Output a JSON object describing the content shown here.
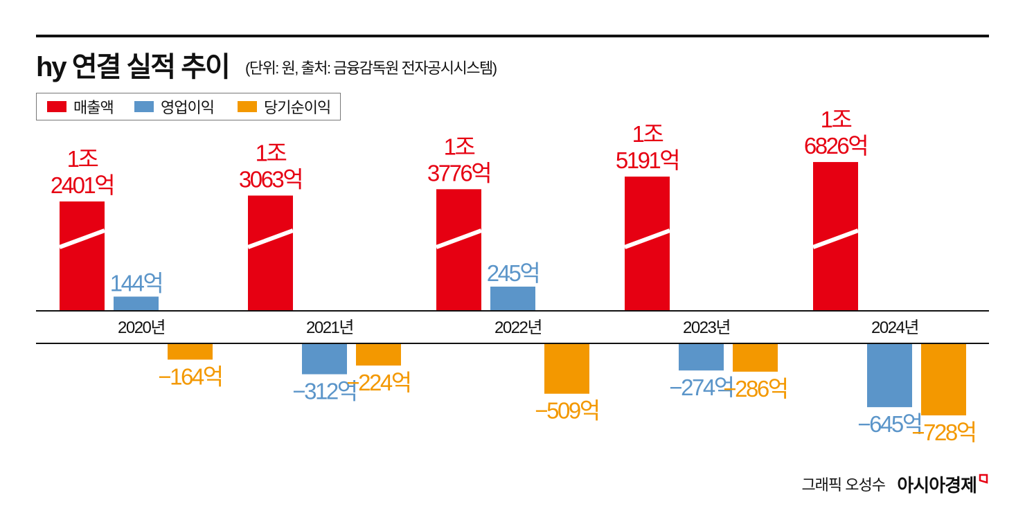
{
  "chart_data": {
    "type": "bar",
    "title": "hy 연결 실적 추이",
    "subtitle": "(단위: 원, 출처: 금융감독원 전자공시시스템)",
    "categories": [
      "2020년",
      "2021년",
      "2022년",
      "2023년",
      "2024년"
    ],
    "legend_position": "top-left",
    "axis_break_on_series": "매출액",
    "unit": "억",
    "series": [
      {
        "name": "매출액",
        "color": "#e60012",
        "values": [
          12401,
          13063,
          13776,
          15191,
          16826
        ],
        "labels": [
          [
            "1조",
            "2401억"
          ],
          [
            "1조",
            "3063억"
          ],
          [
            "1조",
            "3776억"
          ],
          [
            "1조",
            "5191억"
          ],
          [
            "1조",
            "6826억"
          ]
        ]
      },
      {
        "name": "영업이익",
        "color": "#5b95c9",
        "values": [
          144,
          -312,
          245,
          -274,
          -645
        ],
        "labels": [
          "144억",
          "−312억",
          "245억",
          "−274억",
          "−645억"
        ]
      },
      {
        "name": "당기순이익",
        "color": "#f39800",
        "values": [
          -164,
          -224,
          -509,
          -286,
          -728
        ],
        "labels": [
          "−164억",
          "−224억",
          "−509억",
          "−286억",
          "−728억"
        ]
      }
    ]
  },
  "footer": {
    "credit": "그래픽 오성수",
    "brand": "아시아경제"
  }
}
